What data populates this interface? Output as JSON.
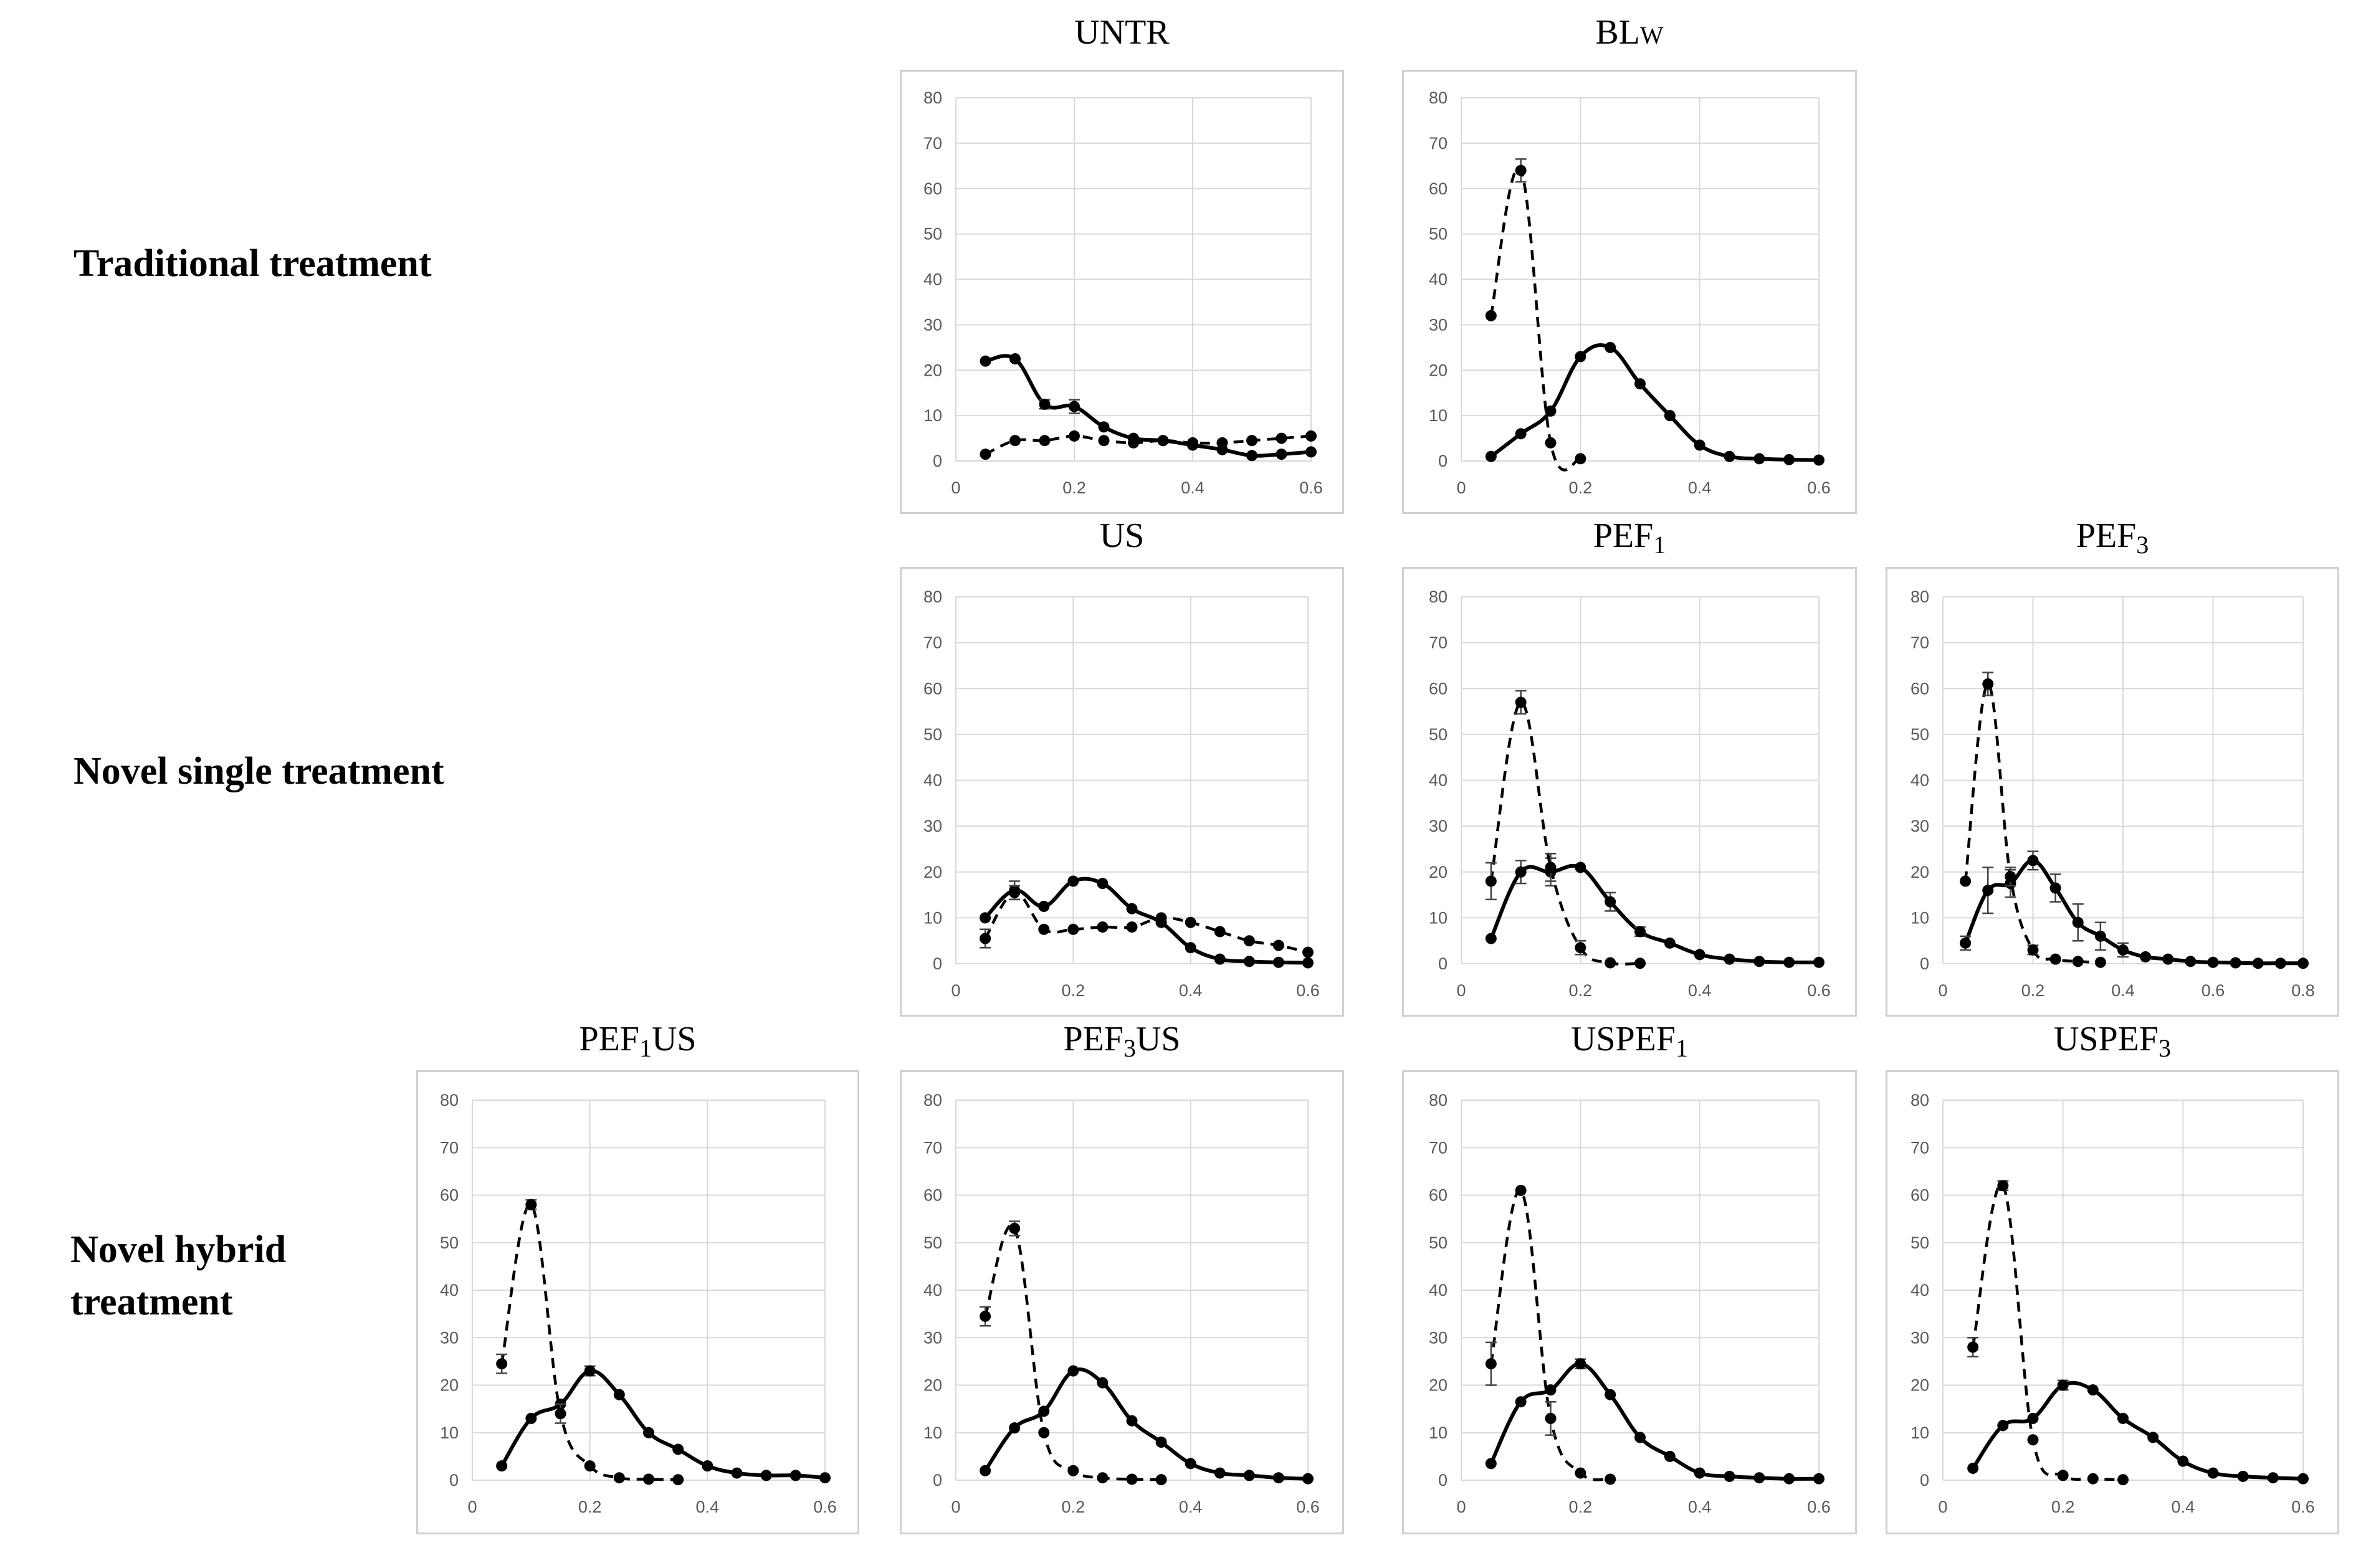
{
  "row_labels": {
    "traditional": "Traditional treatment",
    "single": "Novel single treatment",
    "hybrid_line1": "Novel hybrid",
    "hybrid_line2": "treatment"
  },
  "colors": {
    "grid": "#d9d9d9",
    "axis_text": "#595959",
    "series": "#000000",
    "frame": "#d0d0d0"
  },
  "chart_data": [
    {
      "id": "untr",
      "type": "line",
      "title": "UNTR",
      "title_base": "UNTR",
      "title_sub": "",
      "xlim": [
        0,
        0.6
      ],
      "ylim": [
        0,
        80
      ],
      "x_ticks": [
        "0",
        "0.2",
        "0.4",
        "0.6"
      ],
      "y_ticks": [
        "0",
        "10",
        "20",
        "30",
        "40",
        "50",
        "60",
        "70",
        "80"
      ],
      "series": [
        {
          "name": "solid",
          "style": "solid",
          "x": [
            0.05,
            0.1,
            0.15,
            0.2,
            0.25,
            0.3,
            0.35,
            0.4,
            0.45,
            0.5,
            0.55,
            0.6
          ],
          "values": [
            22,
            22.5,
            12.5,
            12,
            7.5,
            5,
            4.5,
            3.5,
            2.5,
            1.2,
            1.5,
            2
          ],
          "err": [
            0,
            0,
            1,
            1.5,
            0,
            0,
            0,
            0,
            0,
            0,
            0,
            0
          ]
        },
        {
          "name": "dashed",
          "style": "dashed",
          "x": [
            0.05,
            0.1,
            0.15,
            0.2,
            0.25,
            0.3,
            0.35,
            0.4,
            0.45,
            0.5,
            0.55,
            0.6
          ],
          "values": [
            1.5,
            4.5,
            4.5,
            5.5,
            4.5,
            4,
            4.5,
            4,
            4,
            4.5,
            5,
            5.5
          ],
          "err": [
            0,
            0,
            0,
            0,
            0,
            0,
            0,
            0,
            0,
            0,
            0,
            0
          ]
        }
      ]
    },
    {
      "id": "blw",
      "type": "line",
      "title": "BLw",
      "title_base": "BL",
      "title_sub": "W",
      "xlim": [
        0,
        0.6
      ],
      "ylim": [
        0,
        80
      ],
      "x_ticks": [
        "0",
        "0.2",
        "0.4",
        "0.6"
      ],
      "y_ticks": [
        "0",
        "10",
        "20",
        "30",
        "40",
        "50",
        "60",
        "70",
        "80"
      ],
      "series": [
        {
          "name": "solid",
          "style": "solid",
          "x": [
            0.05,
            0.1,
            0.15,
            0.2,
            0.25,
            0.3,
            0.35,
            0.4,
            0.45,
            0.5,
            0.55,
            0.6
          ],
          "values": [
            1,
            6,
            11,
            23,
            25,
            17,
            10,
            3.5,
            1,
            0.5,
            0.3,
            0.2
          ],
          "err": [
            0,
            0,
            0,
            0,
            0,
            0,
            0,
            0,
            0,
            0,
            0,
            0
          ]
        },
        {
          "name": "dashed",
          "style": "dashed",
          "x": [
            0.05,
            0.1,
            0.15,
            0.2
          ],
          "values": [
            32,
            64,
            4,
            0.5
          ],
          "err": [
            0,
            2.5,
            0,
            0
          ]
        }
      ]
    },
    {
      "id": "us",
      "type": "line",
      "title": "US",
      "title_base": "US",
      "title_sub": "",
      "xlim": [
        0,
        0.6
      ],
      "ylim": [
        0,
        80
      ],
      "x_ticks": [
        "0",
        "0.2",
        "0.4",
        "0.6"
      ],
      "y_ticks": [
        "0",
        "10",
        "20",
        "30",
        "40",
        "50",
        "60",
        "70",
        "80"
      ],
      "series": [
        {
          "name": "solid",
          "style": "solid",
          "x": [
            0.05,
            0.1,
            0.15,
            0.2,
            0.25,
            0.3,
            0.35,
            0.4,
            0.45,
            0.5,
            0.55,
            0.6
          ],
          "values": [
            10,
            16,
            12.5,
            18,
            17.5,
            12,
            9,
            3.5,
            1,
            0.5,
            0.3,
            0.2
          ],
          "err": [
            0,
            2,
            0,
            0,
            0,
            0,
            0,
            0,
            0,
            0,
            0,
            0
          ]
        },
        {
          "name": "dashed",
          "style": "dashed",
          "x": [
            0.05,
            0.1,
            0.15,
            0.2,
            0.25,
            0.3,
            0.35,
            0.4,
            0.45,
            0.5,
            0.55,
            0.6
          ],
          "values": [
            5.5,
            15.5,
            7.5,
            7.5,
            8,
            8,
            10,
            9,
            7,
            5,
            4,
            2.5
          ],
          "err": [
            2,
            1.5,
            0,
            0,
            0,
            0,
            0,
            0,
            0,
            0,
            0,
            0
          ]
        }
      ]
    },
    {
      "id": "pef1",
      "type": "line",
      "title": "PEF1",
      "title_base": "PEF",
      "title_sub": "1",
      "xlim": [
        0,
        0.6
      ],
      "ylim": [
        0,
        80
      ],
      "x_ticks": [
        "0",
        "0.2",
        "0.4",
        "0.6"
      ],
      "y_ticks": [
        "0",
        "10",
        "20",
        "30",
        "40",
        "50",
        "60",
        "70",
        "80"
      ],
      "series": [
        {
          "name": "solid",
          "style": "solid",
          "x": [
            0.05,
            0.1,
            0.15,
            0.2,
            0.25,
            0.3,
            0.35,
            0.4,
            0.45,
            0.5,
            0.55,
            0.6
          ],
          "values": [
            5.5,
            20,
            20,
            21,
            13.5,
            7,
            4.5,
            2,
            1,
            0.5,
            0.3,
            0.3
          ],
          "err": [
            0,
            2.5,
            3,
            0,
            2,
            1,
            0,
            0,
            0,
            0,
            0,
            0
          ]
        },
        {
          "name": "dashed",
          "style": "dashed",
          "x": [
            0.05,
            0.1,
            0.15,
            0.2,
            0.25,
            0.3
          ],
          "values": [
            18,
            57,
            21,
            3.5,
            0.2,
            0.1
          ],
          "err": [
            4,
            2.5,
            3,
            1.5,
            0,
            0
          ]
        }
      ]
    },
    {
      "id": "pef3",
      "type": "line",
      "title": "PEF3",
      "title_base": "PEF",
      "title_sub": "3",
      "xlim": [
        0,
        0.8
      ],
      "ylim": [
        0,
        80
      ],
      "x_ticks": [
        "0",
        "0.2",
        "0.4",
        "0.6",
        "0.8"
      ],
      "y_ticks": [
        "0",
        "10",
        "20",
        "30",
        "40",
        "50",
        "60",
        "70",
        "80"
      ],
      "series": [
        {
          "name": "solid",
          "style": "solid",
          "x": [
            0.05,
            0.1,
            0.15,
            0.2,
            0.25,
            0.3,
            0.35,
            0.4,
            0.45,
            0.5,
            0.55,
            0.6,
            0.65,
            0.7,
            0.75,
            0.8
          ],
          "values": [
            4.5,
            16,
            17.5,
            22.5,
            16.5,
            9,
            6,
            3,
            1.5,
            1,
            0.5,
            0.3,
            0.2,
            0.1,
            0.1,
            0.1
          ],
          "err": [
            1.5,
            5,
            3,
            2,
            3,
            4,
            3,
            1.5,
            0,
            0,
            0,
            0,
            0,
            0,
            0,
            0
          ]
        },
        {
          "name": "dashed",
          "style": "dashed",
          "x": [
            0.05,
            0.1,
            0.15,
            0.2,
            0.25,
            0.3,
            0.35
          ],
          "values": [
            18,
            61,
            19,
            3,
            1,
            0.5,
            0.3
          ],
          "err": [
            0,
            2.5,
            2,
            1,
            0,
            0,
            0
          ]
        }
      ]
    },
    {
      "id": "pef1us",
      "type": "line",
      "title": "PEF1US",
      "title_base": "PEF",
      "title_sub": "1",
      "title_suffix": "US",
      "xlim": [
        0,
        0.6
      ],
      "ylim": [
        0,
        80
      ],
      "x_ticks": [
        "0",
        "0.2",
        "0.4",
        "0.6"
      ],
      "y_ticks": [
        "0",
        "10",
        "20",
        "30",
        "40",
        "50",
        "60",
        "70",
        "80"
      ],
      "series": [
        {
          "name": "solid",
          "style": "solid",
          "x": [
            0.05,
            0.1,
            0.15,
            0.2,
            0.25,
            0.3,
            0.35,
            0.4,
            0.45,
            0.5,
            0.55,
            0.6
          ],
          "values": [
            3,
            13,
            16,
            23,
            18,
            10,
            6.5,
            3,
            1.5,
            1,
            1,
            0.5
          ],
          "err": [
            0,
            0,
            0,
            1,
            0,
            0,
            0,
            0,
            0,
            0,
            0,
            0
          ]
        },
        {
          "name": "dashed",
          "style": "dashed",
          "x": [
            0.05,
            0.1,
            0.15,
            0.2,
            0.25,
            0.3,
            0.35
          ],
          "values": [
            24.5,
            58,
            14,
            3,
            0.5,
            0.2,
            0.1
          ],
          "err": [
            2,
            1,
            2,
            0,
            0,
            0,
            0
          ]
        }
      ]
    },
    {
      "id": "pef3us",
      "type": "line",
      "title": "PEF3US",
      "title_base": "PEF",
      "title_sub": "3",
      "title_suffix": "US",
      "xlim": [
        0,
        0.6
      ],
      "ylim": [
        0,
        80
      ],
      "x_ticks": [
        "0",
        "0.2",
        "0.4",
        "0.6"
      ],
      "y_ticks": [
        "0",
        "10",
        "20",
        "30",
        "40",
        "50",
        "60",
        "70",
        "80"
      ],
      "series": [
        {
          "name": "solid",
          "style": "solid",
          "x": [
            0.05,
            0.1,
            0.15,
            0.2,
            0.25,
            0.3,
            0.35,
            0.4,
            0.45,
            0.5,
            0.55,
            0.6
          ],
          "values": [
            2,
            11,
            14.5,
            23,
            20.5,
            12.5,
            8,
            3.5,
            1.5,
            1,
            0.5,
            0.3
          ],
          "err": [
            0,
            0,
            0,
            0,
            0,
            0,
            0,
            0,
            0,
            0,
            0,
            0
          ]
        },
        {
          "name": "dashed",
          "style": "dashed",
          "x": [
            0.05,
            0.1,
            0.15,
            0.2,
            0.25,
            0.3,
            0.35
          ],
          "values": [
            34.5,
            53,
            10,
            2,
            0.5,
            0.2,
            0.1
          ],
          "err": [
            2,
            1.5,
            0,
            0,
            0,
            0,
            0
          ]
        }
      ]
    },
    {
      "id": "uspef1",
      "type": "line",
      "title": "USPEF1",
      "title_base": "USPEF",
      "title_sub": "1",
      "xlim": [
        0,
        0.6
      ],
      "ylim": [
        0,
        80
      ],
      "x_ticks": [
        "0",
        "0.2",
        "0.4",
        "0.6"
      ],
      "y_ticks": [
        "0",
        "10",
        "20",
        "30",
        "40",
        "50",
        "60",
        "70",
        "80"
      ],
      "series": [
        {
          "name": "solid",
          "style": "solid",
          "x": [
            0.05,
            0.1,
            0.15,
            0.2,
            0.25,
            0.3,
            0.35,
            0.4,
            0.45,
            0.5,
            0.55,
            0.6
          ],
          "values": [
            3.5,
            16.5,
            19,
            24.5,
            18,
            9,
            5,
            1.5,
            0.8,
            0.5,
            0.3,
            0.3
          ],
          "err": [
            0,
            0,
            0,
            1,
            0,
            0,
            0,
            0,
            0,
            0,
            0,
            0
          ]
        },
        {
          "name": "dashed",
          "style": "dashed",
          "x": [
            0.05,
            0.1,
            0.15,
            0.2,
            0.25
          ],
          "values": [
            24.5,
            61,
            13,
            1.5,
            0.2
          ],
          "err": [
            4.5,
            0,
            3.5,
            0,
            0
          ]
        }
      ]
    },
    {
      "id": "uspef3",
      "type": "line",
      "title": "USPEF3",
      "title_base": "USPEF",
      "title_sub": "3",
      "xlim": [
        0,
        0.6
      ],
      "ylim": [
        0,
        80
      ],
      "x_ticks": [
        "0",
        "0.2",
        "0.4",
        "0.6"
      ],
      "y_ticks": [
        "0",
        "10",
        "20",
        "30",
        "40",
        "50",
        "60",
        "70",
        "80"
      ],
      "series": [
        {
          "name": "solid",
          "style": "solid",
          "x": [
            0.05,
            0.1,
            0.15,
            0.2,
            0.25,
            0.3,
            0.35,
            0.4,
            0.45,
            0.5,
            0.55,
            0.6
          ],
          "values": [
            2.5,
            11.5,
            13,
            20,
            19,
            13,
            9,
            4,
            1.5,
            0.8,
            0.5,
            0.3
          ],
          "err": [
            0,
            0,
            0,
            1,
            0,
            0,
            0,
            0,
            0,
            0,
            0,
            0
          ]
        },
        {
          "name": "dashed",
          "style": "dashed",
          "x": [
            0.05,
            0.1,
            0.15,
            0.2,
            0.25,
            0.3
          ],
          "values": [
            28,
            62,
            8.5,
            1,
            0.3,
            0.1
          ],
          "err": [
            2,
            1,
            0,
            0,
            0,
            0
          ]
        }
      ]
    }
  ]
}
